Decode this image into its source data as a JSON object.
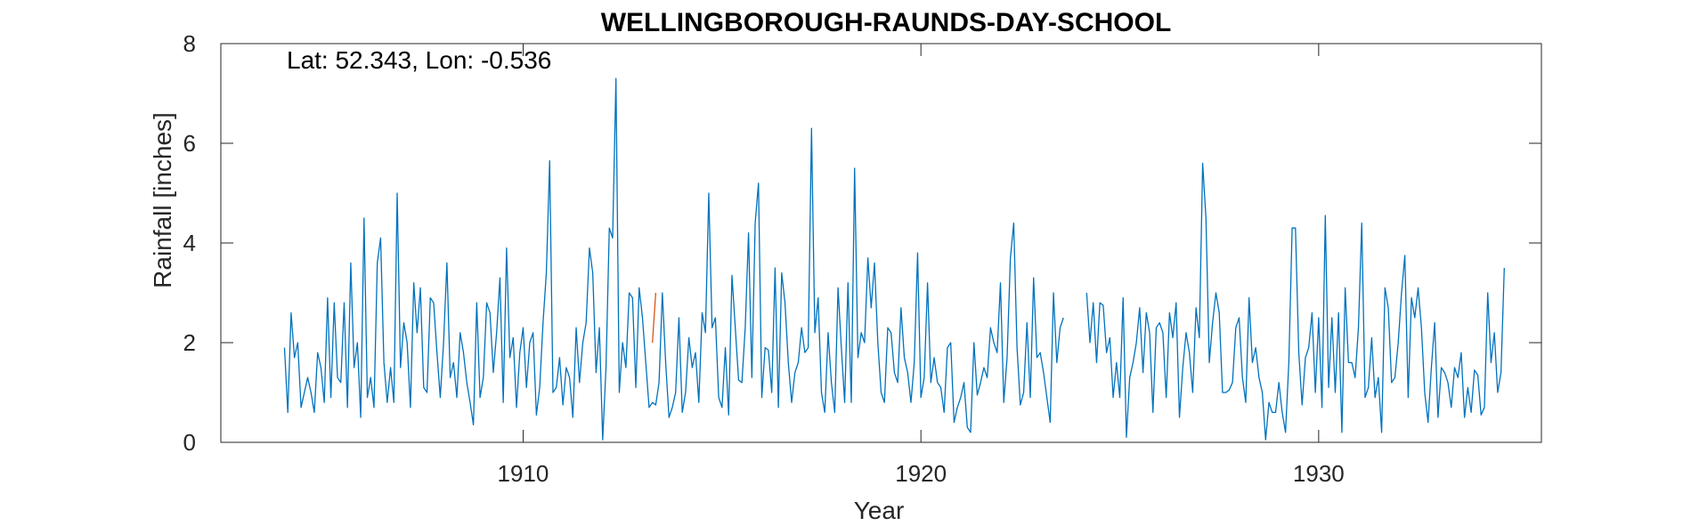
{
  "chart_data": {
    "type": "line",
    "title": "WELLINGBOROUGH-RAUNDS-DAY-SCHOOL",
    "annotation": "Lat: 52.343, Lon: -0.536",
    "xlabel": "Year",
    "ylabel": "Rainfall [inches]",
    "xlim": [
      1902.4,
      1935.6
    ],
    "ylim": [
      0,
      8
    ],
    "xticks": [
      1910,
      1920,
      1930
    ],
    "yticks": [
      0,
      2,
      4,
      6,
      8
    ],
    "grid": false,
    "series_color": "#0072BD",
    "highlight_color": "#D95319",
    "x_start": "1904-01",
    "series": [
      {
        "values": [
          1.9,
          0.6,
          2.6,
          1.7,
          2.0,
          0.7,
          1.0,
          1.3,
          1.0,
          0.6,
          1.8,
          1.5,
          0.8,
          2.9,
          0.9,
          2.8,
          1.3,
          1.2,
          2.8,
          0.7,
          3.6,
          1.5,
          2.0,
          0.5,
          4.5,
          0.9,
          1.3,
          0.7,
          3.6,
          4.1,
          1.6,
          0.8,
          1.5,
          0.8,
          5.0,
          1.5,
          2.4,
          2.0,
          0.7,
          3.2,
          2.2,
          3.1,
          1.1,
          1.0,
          2.9,
          2.8,
          1.8,
          0.9,
          2.0,
          3.6,
          1.3,
          1.6,
          0.9,
          2.2,
          1.8,
          1.2,
          0.8,
          0.35,
          2.8,
          0.9,
          1.3,
          2.8,
          2.6,
          1.4,
          2.2,
          3.3,
          0.8,
          3.9,
          1.7,
          2.1,
          0.7,
          1.8,
          2.3,
          1.1,
          2.0,
          2.2,
          0.55,
          1.1,
          2.4,
          3.4,
          5.65,
          1.0,
          1.1,
          1.7,
          0.75,
          1.5,
          1.3,
          0.5,
          2.3,
          1.2,
          2.0,
          2.4,
          3.9,
          3.4,
          1.4,
          2.3,
          0.05,
          1.5,
          4.3,
          4.1,
          7.3,
          1.0,
          2.0,
          1.5,
          3.0,
          2.9,
          1.1,
          3.1,
          2.5,
          1.6,
          0.7,
          0.8,
          0.75,
          1.2,
          3.0,
          1.6,
          0.5,
          0.7,
          1.0,
          2.5,
          0.6,
          1.0,
          2.1,
          1.5,
          1.8,
          0.8,
          2.6,
          2.2,
          5.0,
          2.3,
          2.5,
          0.9,
          0.7,
          1.9,
          0.55,
          3.35,
          2.3,
          1.25,
          1.2,
          2.3,
          4.2,
          1.3,
          4.4,
          5.2,
          0.9,
          1.9,
          1.85,
          1.0,
          3.5,
          0.7,
          3.4,
          2.8,
          1.6,
          0.8,
          1.4,
          1.6,
          2.3,
          1.8,
          1.9,
          6.3,
          2.2,
          2.9,
          1.0,
          0.6,
          2.2,
          1.2,
          0.6,
          3.1,
          1.9,
          0.8,
          3.2,
          0.8,
          5.5,
          1.7,
          2.2,
          2.0,
          3.7,
          2.7,
          3.6,
          2.0,
          1.0,
          0.8,
          2.3,
          2.2,
          1.4,
          1.2,
          2.7,
          1.7,
          1.4,
          0.8,
          1.6,
          3.8,
          0.9,
          1.3,
          3.2,
          1.2,
          1.7,
          1.2,
          1.1,
          0.6,
          1.9,
          2.0,
          0.4,
          0.7,
          0.9,
          1.2,
          0.3,
          0.2,
          2.0,
          0.95,
          1.2,
          1.5,
          1.3,
          2.3,
          2.0,
          1.8,
          3.2,
          0.8,
          1.7,
          3.7,
          4.4,
          1.9,
          0.75,
          1.0,
          2.4,
          0.9,
          3.3,
          1.7,
          1.8,
          1.4,
          0.9,
          0.4,
          3.0,
          1.6,
          2.3,
          2.5,
          null,
          null,
          null,
          null,
          null,
          null,
          3.0,
          2.0,
          2.8,
          1.6,
          2.8,
          2.75,
          1.8,
          2.1,
          0.9,
          1.6,
          0.9,
          2.9,
          0.1,
          1.3,
          1.6,
          2.0,
          2.7,
          1.4,
          2.6,
          2.2,
          0.6,
          2.3,
          2.4,
          2.2,
          0.9,
          2.6,
          2.1,
          2.8,
          0.5,
          1.5,
          2.2,
          1.8,
          1.0,
          2.7,
          2.1,
          5.6,
          4.5,
          1.6,
          2.4,
          3.0,
          2.6,
          1.0,
          1.0,
          1.05,
          1.2,
          2.3,
          2.5,
          1.3,
          0.8,
          2.9,
          1.6,
          1.9,
          1.3,
          1.0,
          0.05,
          0.8,
          0.6,
          0.6,
          1.2,
          0.6,
          0.2,
          1.6,
          4.3,
          4.3,
          1.8,
          0.75,
          1.7,
          1.9,
          2.6,
          1.0,
          2.5,
          0.7,
          4.55,
          1.1,
          2.5,
          1.0,
          2.6,
          0.2,
          3.1,
          1.6,
          1.6,
          1.3,
          2.3,
          4.4,
          0.9,
          1.1,
          2.1,
          0.9,
          1.3,
          0.2,
          3.1,
          2.7,
          1.2,
          1.3,
          2.0,
          3.0,
          3.75,
          0.9,
          2.9,
          2.5,
          3.1,
          2.3,
          1.0,
          0.4,
          1.5,
          2.4,
          0.5,
          1.5,
          1.4,
          1.2,
          0.7,
          1.5,
          1.3,
          1.8,
          0.5,
          1.1,
          0.6,
          1.45,
          1.35,
          0.55,
          0.7,
          3.0,
          1.6,
          2.2,
          1.0,
          1.4,
          3.5
        ]
      },
      {
        "values": [
          2.0,
          3.0
        ]
      }
    ],
    "highlight_x_start": "1913-04"
  }
}
